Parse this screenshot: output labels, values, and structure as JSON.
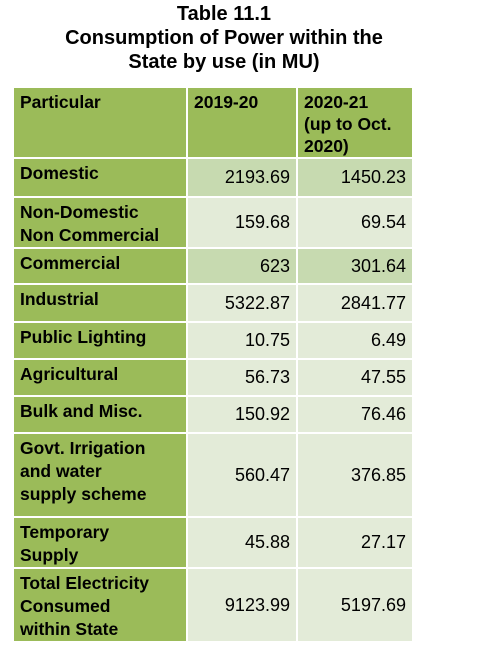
{
  "title": {
    "line1": "Table 11.1",
    "line2": "Consumption of Power within the",
    "line3": "State by use (in MU)"
  },
  "table": {
    "headers": [
      {
        "lines": [
          "Particular"
        ]
      },
      {
        "lines": [
          "2019-20"
        ]
      },
      {
        "lines": [
          "2020-21",
          "(up to Oct.",
          "2020)"
        ]
      }
    ],
    "rows": [
      {
        "label": [
          "Domestic"
        ],
        "v2019_20": "2193.69",
        "v2020_21": "1450.23"
      },
      {
        "label": [
          "Non-Domestic",
          "Non Commercial"
        ],
        "v2019_20": "159.68",
        "v2020_21": "69.54"
      },
      {
        "label": [
          "Commercial"
        ],
        "v2019_20": "623",
        "v2020_21": "301.64"
      },
      {
        "label": [
          "Industrial"
        ],
        "v2019_20": "5322.87",
        "v2020_21": "2841.77"
      },
      {
        "label": [
          "Public Lighting"
        ],
        "v2019_20": "10.75",
        "v2020_21": "6.49"
      },
      {
        "label": [
          "Agricultural"
        ],
        "v2019_20": "56.73",
        "v2020_21": "47.55"
      },
      {
        "label": [
          "Bulk and Misc."
        ],
        "v2019_20": "150.92",
        "v2020_21": "76.46"
      },
      {
        "label": [
          "Govt. Irrigation",
          "and water",
          "supply scheme"
        ],
        "v2019_20": "560.47",
        "v2020_21": "376.85"
      },
      {
        "label": [
          "Temporary",
          "Supply"
        ],
        "v2019_20": "45.88",
        "v2020_21": "27.17"
      },
      {
        "label": [
          "Total Electricity",
          "Consumed",
          "within State"
        ],
        "v2019_20": "9123.99",
        "v2020_21": "5197.69"
      }
    ]
  },
  "colors": {
    "header_green": "#9bbb59",
    "cell_dark": "#c7dab0",
    "cell_light": "#e3ebd8"
  }
}
